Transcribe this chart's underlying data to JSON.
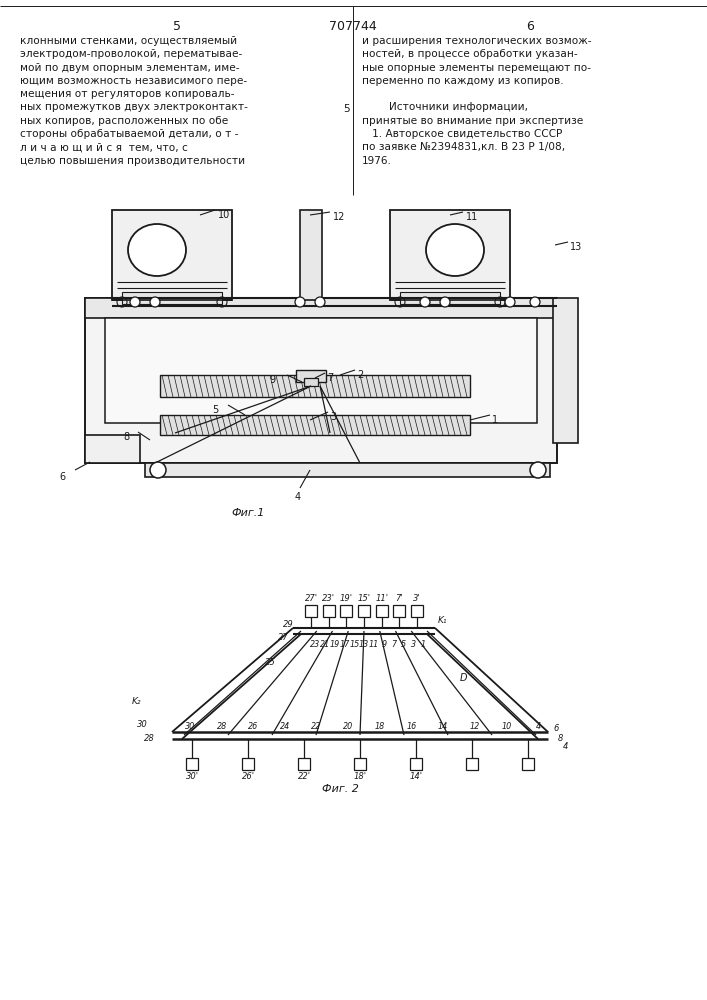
{
  "page_color": "#ffffff",
  "text_color": "#1a1a1a",
  "line_color": "#1a1a1a",
  "header": {
    "left_num": "5",
    "center_num": "707744",
    "right_num": "6"
  },
  "left_text": [
    "клонными стенками, осуществляемый",
    "электродом-проволокой, перематывае-",
    "мой по двум опорным элементам, име-",
    "ющим возможность независимого пере-",
    "мещения от регуляторов копироваль-",
    "ных промежутков двух электроконтакт-",
    "ных копиров, расположенных по обе",
    "стороны обрабатываемой детали, о т -",
    "л и ч а ю щ и й с я  тем, что, с",
    "целью повышения производительности"
  ],
  "right_text": [
    "и расширения технологических возмож-",
    "ностей, в процессе обработки указан-",
    "ные опорные элементы перемещают по-",
    "переменно по каждому из копиров.",
    "",
    "        Источники информации,",
    "принятые во внимание при экспертизе",
    "   1. Авторское свидетельство СССР",
    "по заявке №2394831,кл. В 23 Р 1/08,",
    "1976."
  ],
  "fig1_label": "Фиг.1",
  "fig2_label": "Фиг. 2",
  "lineno_5": "5"
}
